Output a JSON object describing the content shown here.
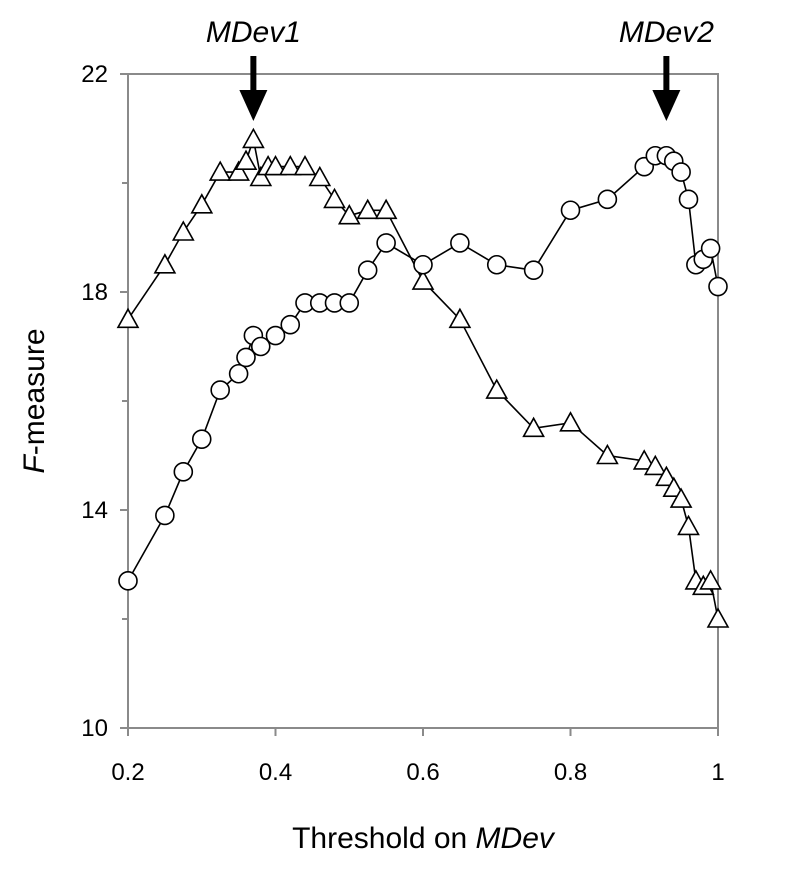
{
  "chart_data": {
    "type": "line",
    "xlabel": {
      "prefix": "Threshold on ",
      "emphasis": "MDev"
    },
    "ylabel": {
      "emphasis": "F",
      "suffix": "-measure"
    },
    "xlim": [
      0.2,
      1.0
    ],
    "ylim": [
      10,
      22
    ],
    "x_ticks": [
      0.2,
      0.4,
      0.6,
      0.8,
      1.0
    ],
    "x_tick_labels": [
      "0.2",
      "0.4",
      "0.6",
      "0.8",
      "1"
    ],
    "y_ticks": [
      10,
      14,
      18,
      22
    ],
    "y_tick_labels": [
      "10",
      "14",
      "18",
      "22"
    ],
    "y_minor_ticks": [
      12,
      16,
      20
    ],
    "grid": false,
    "legend": "none",
    "series": [
      {
        "marker": "triangle",
        "points": [
          [
            0.2,
            17.5
          ],
          [
            0.25,
            18.5
          ],
          [
            0.275,
            19.1
          ],
          [
            0.3,
            19.6
          ],
          [
            0.325,
            20.2
          ],
          [
            0.35,
            20.2
          ],
          [
            0.36,
            20.4
          ],
          [
            0.37,
            20.8
          ],
          [
            0.38,
            20.1
          ],
          [
            0.39,
            20.3
          ],
          [
            0.4,
            20.3
          ],
          [
            0.42,
            20.3
          ],
          [
            0.44,
            20.3
          ],
          [
            0.46,
            20.1
          ],
          [
            0.48,
            19.7
          ],
          [
            0.5,
            19.4
          ],
          [
            0.525,
            19.5
          ],
          [
            0.55,
            19.5
          ],
          [
            0.6,
            18.2
          ],
          [
            0.65,
            17.5
          ],
          [
            0.7,
            16.2
          ],
          [
            0.75,
            15.5
          ],
          [
            0.8,
            15.6
          ],
          [
            0.85,
            15.0
          ],
          [
            0.9,
            14.9
          ],
          [
            0.915,
            14.8
          ],
          [
            0.93,
            14.6
          ],
          [
            0.94,
            14.4
          ],
          [
            0.95,
            14.2
          ],
          [
            0.96,
            13.7
          ],
          [
            0.97,
            12.7
          ],
          [
            0.98,
            12.6
          ],
          [
            0.99,
            12.7
          ],
          [
            1.0,
            12.0
          ]
        ]
      },
      {
        "marker": "circle",
        "points": [
          [
            0.2,
            12.7
          ],
          [
            0.25,
            13.9
          ],
          [
            0.275,
            14.7
          ],
          [
            0.3,
            15.3
          ],
          [
            0.325,
            16.2
          ],
          [
            0.35,
            16.5
          ],
          [
            0.36,
            16.8
          ],
          [
            0.37,
            17.2
          ],
          [
            0.38,
            17.0
          ],
          [
            0.4,
            17.2
          ],
          [
            0.42,
            17.4
          ],
          [
            0.44,
            17.8
          ],
          [
            0.46,
            17.8
          ],
          [
            0.48,
            17.8
          ],
          [
            0.5,
            17.8
          ],
          [
            0.525,
            18.4
          ],
          [
            0.55,
            18.9
          ],
          [
            0.6,
            18.5
          ],
          [
            0.65,
            18.9
          ],
          [
            0.7,
            18.5
          ],
          [
            0.75,
            18.4
          ],
          [
            0.8,
            19.5
          ],
          [
            0.85,
            19.7
          ],
          [
            0.9,
            20.3
          ],
          [
            0.915,
            20.5
          ],
          [
            0.93,
            20.5
          ],
          [
            0.94,
            20.4
          ],
          [
            0.95,
            20.2
          ],
          [
            0.96,
            19.7
          ],
          [
            0.97,
            18.5
          ],
          [
            0.98,
            18.6
          ],
          [
            0.99,
            18.8
          ],
          [
            1.0,
            18.1
          ]
        ]
      }
    ],
    "annotations": [
      {
        "text": "MDev1",
        "x": 0.37,
        "arrow": "down"
      },
      {
        "text": "MDev2",
        "x": 0.93,
        "arrow": "down"
      }
    ]
  }
}
